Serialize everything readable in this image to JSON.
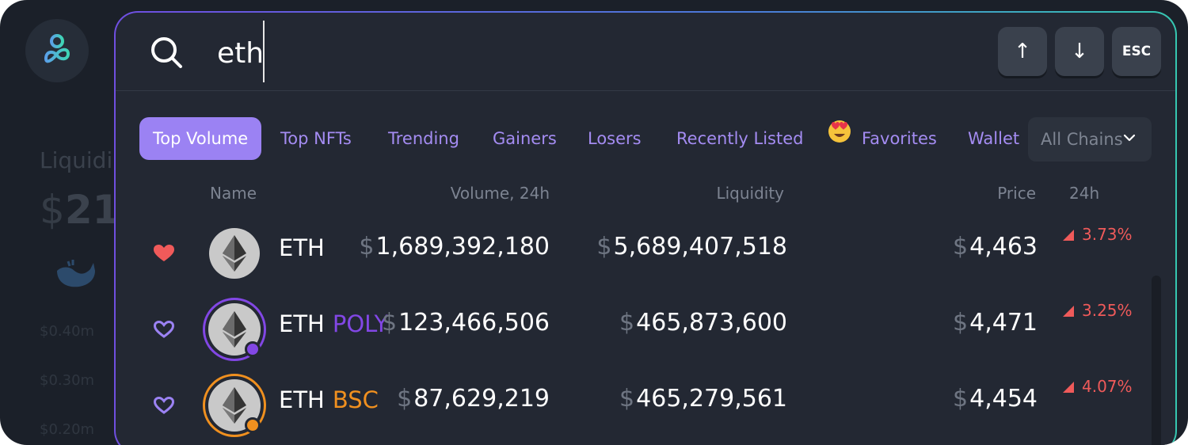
{
  "background": {
    "liquidity_label": "Liquidi",
    "liquidity_value_prefix": "$",
    "liquidity_value": "21,",
    "ticks": [
      "$0.40m",
      "$0.30m",
      "$0.20m"
    ]
  },
  "search": {
    "value": "eth",
    "keys": {
      "up": "↑",
      "down": "↓",
      "esc": "ESC"
    }
  },
  "tabs": [
    {
      "label": "Top Volume",
      "active": true
    },
    {
      "label": "Top NFTs"
    },
    {
      "label": "Trending"
    },
    {
      "label": "Gainers"
    },
    {
      "label": "Losers"
    },
    {
      "label": "Recently Listed"
    },
    {
      "label": "Favorites",
      "icon": "heart-eyes-emoji"
    },
    {
      "label": "Wallet"
    }
  ],
  "chain_select": {
    "selected": "All Chains"
  },
  "columns": {
    "name": "Name",
    "volume": "Volume, 24h",
    "liquidity": "Liquidity",
    "price": "Price",
    "change": "24h"
  },
  "rows": [
    {
      "symbol": "ETH",
      "chain": "",
      "favorited": true,
      "volume": "1,689,392,180",
      "liquidity": "5,689,407,518",
      "price": "4,463",
      "change": "3.73%"
    },
    {
      "symbol": "ETH",
      "chain": "POLY",
      "chain_color": "#8247e5",
      "favorited": false,
      "volume": "123,466,506",
      "liquidity": "465,873,600",
      "price": "4,471",
      "change": "3.25%"
    },
    {
      "symbol": "ETH",
      "chain": "BSC",
      "chain_color": "#f0901f",
      "favorited": false,
      "volume": "87,629,219",
      "liquidity": "465,279,561",
      "price": "4,454",
      "change": "4.07%"
    }
  ],
  "currency_symbol": "$",
  "colors": {
    "accent": "#9b82f3",
    "negative": "#ef5a5a",
    "poly": "#8247e5",
    "bsc": "#f0901f"
  }
}
